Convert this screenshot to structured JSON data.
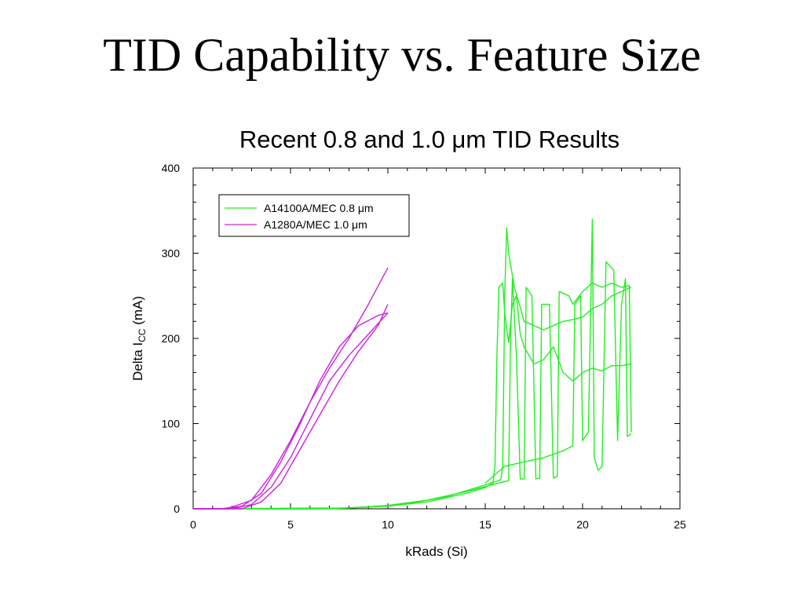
{
  "slide": {
    "title": "TID Capability vs. Feature Size"
  },
  "chart_data": {
    "type": "line",
    "title": "Recent 0.8 and 1.0 μm TID Results",
    "xlabel": "kRads (Si)",
    "ylabel": {
      "prefix": "Delta I",
      "sub": "CC",
      "suffix": " (mA)"
    },
    "xlim": [
      0,
      25
    ],
    "ylim": [
      0,
      400
    ],
    "x_ticks": [
      0,
      5,
      10,
      15,
      20,
      25
    ],
    "y_ticks": [
      0,
      100,
      200,
      300,
      400
    ],
    "grid": false,
    "legend": "top-left",
    "series": [
      {
        "name": "A14100A/MEC 0.8 μm",
        "color": "#22ee22",
        "curves": [
          [
            [
              0,
              0
            ],
            [
              6,
              0
            ],
            [
              8,
              1
            ],
            [
              10,
              3
            ],
            [
              12,
              8
            ],
            [
              14,
              18
            ],
            [
              15,
              25
            ],
            [
              15.4,
              30
            ],
            [
              15.5,
              50
            ],
            [
              15.6,
              180
            ],
            [
              15.7,
              260
            ],
            [
              15.9,
              265
            ],
            [
              16.0,
              230
            ],
            [
              16.2,
              195
            ],
            [
              16.4,
              240
            ],
            [
              16.6,
              250
            ],
            [
              16.8,
              205
            ],
            [
              17,
              190
            ],
            [
              17.5,
              170
            ],
            [
              18,
              175
            ],
            [
              18.5,
              190
            ],
            [
              19,
              160
            ],
            [
              19.5,
              150
            ],
            [
              20,
              160
            ],
            [
              20.5,
              165
            ],
            [
              21,
              162
            ],
            [
              21.5,
              168
            ],
            [
              22,
              168
            ],
            [
              22.5,
              170
            ]
          ],
          [
            [
              0,
              0
            ],
            [
              7,
              0
            ],
            [
              9,
              2
            ],
            [
              11,
              6
            ],
            [
              13,
              14
            ],
            [
              15,
              28
            ],
            [
              15.8,
              34
            ],
            [
              15.9,
              50
            ],
            [
              16.0,
              250
            ],
            [
              16.1,
              330
            ],
            [
              16.2,
              300
            ],
            [
              16.5,
              260
            ],
            [
              17,
              220
            ],
            [
              17.5,
              215
            ],
            [
              18,
              210
            ],
            [
              18.5,
              215
            ],
            [
              19,
              220
            ],
            [
              19.5,
              222
            ],
            [
              20,
              225
            ],
            [
              20.5,
              235
            ],
            [
              21,
              240
            ],
            [
              21.5,
              250
            ],
            [
              22,
              255
            ],
            [
              22.5,
              260
            ]
          ],
          [
            [
              0,
              0
            ],
            [
              8,
              1
            ],
            [
              10,
              4
            ],
            [
              12,
              10
            ],
            [
              14,
              20
            ],
            [
              16,
              32
            ],
            [
              16.2,
              33
            ],
            [
              16.3,
              200
            ],
            [
              16.4,
              270
            ],
            [
              16.6,
              180
            ],
            [
              16.8,
              35
            ],
            [
              17.0,
              35
            ],
            [
              17.1,
              260
            ],
            [
              17.4,
              250
            ],
            [
              17.6,
              35
            ],
            [
              17.8,
              36
            ],
            [
              17.9,
              240
            ],
            [
              18.3,
              240
            ],
            [
              18.5,
              36
            ],
            [
              18.7,
              38
            ],
            [
              18.8,
              255
            ],
            [
              19.3,
              250
            ],
            [
              19.5,
              240
            ],
            [
              20,
              255
            ],
            [
              20.5,
              265
            ],
            [
              21,
              260
            ],
            [
              21.5,
              265
            ],
            [
              22,
              260
            ],
            [
              22.4,
              262
            ],
            [
              22.5,
              90
            ]
          ],
          [
            [
              15,
              30
            ],
            [
              16,
              50
            ],
            [
              17,
              55
            ],
            [
              18,
              60
            ],
            [
              19,
              68
            ],
            [
              19.5,
              74
            ],
            [
              19.6,
              240
            ],
            [
              19.9,
              250
            ],
            [
              20.0,
              80
            ],
            [
              20.3,
              90
            ],
            [
              20.5,
              340
            ],
            [
              20.6,
              60
            ],
            [
              20.8,
              45
            ],
            [
              21.0,
              50
            ],
            [
              21.2,
              290
            ],
            [
              21.6,
              280
            ],
            [
              21.8,
              80
            ],
            [
              22.0,
              240
            ],
            [
              22.2,
              270
            ],
            [
              22.3,
              85
            ],
            [
              22.5,
              88
            ]
          ]
        ]
      },
      {
        "name": "A1280A/MEC 1.0 μm",
        "color": "#cc22dd",
        "curves": [
          [
            [
              0,
              0
            ],
            [
              1.5,
              0
            ],
            [
              2,
              2
            ],
            [
              3,
              10
            ],
            [
              4,
              40
            ],
            [
              5,
              80
            ],
            [
              6,
              125
            ],
            [
              7,
              165
            ],
            [
              8,
              200
            ],
            [
              9,
              240
            ],
            [
              10,
              283
            ]
          ],
          [
            [
              0,
              0
            ],
            [
              1.7,
              0
            ],
            [
              2.5,
              3
            ],
            [
              3.5,
              18
            ],
            [
              4.5,
              55
            ],
            [
              5.5,
              100
            ],
            [
              6.5,
              150
            ],
            [
              7.5,
              190
            ],
            [
              8.5,
              215
            ],
            [
              9.5,
              227
            ],
            [
              10,
              230
            ]
          ],
          [
            [
              0,
              0
            ],
            [
              2,
              0
            ],
            [
              3,
              5
            ],
            [
              4,
              25
            ],
            [
              5,
              60
            ],
            [
              6,
              105
            ],
            [
              7,
              150
            ],
            [
              8,
              180
            ],
            [
              9,
              205
            ],
            [
              10,
              230
            ]
          ],
          [
            [
              0,
              0
            ],
            [
              2.5,
              0
            ],
            [
              3.5,
              8
            ],
            [
              4.5,
              30
            ],
            [
              5.5,
              70
            ],
            [
              6.5,
              110
            ],
            [
              7.5,
              150
            ],
            [
              8.5,
              185
            ],
            [
              9.5,
              215
            ],
            [
              10,
              240
            ]
          ]
        ]
      }
    ]
  }
}
